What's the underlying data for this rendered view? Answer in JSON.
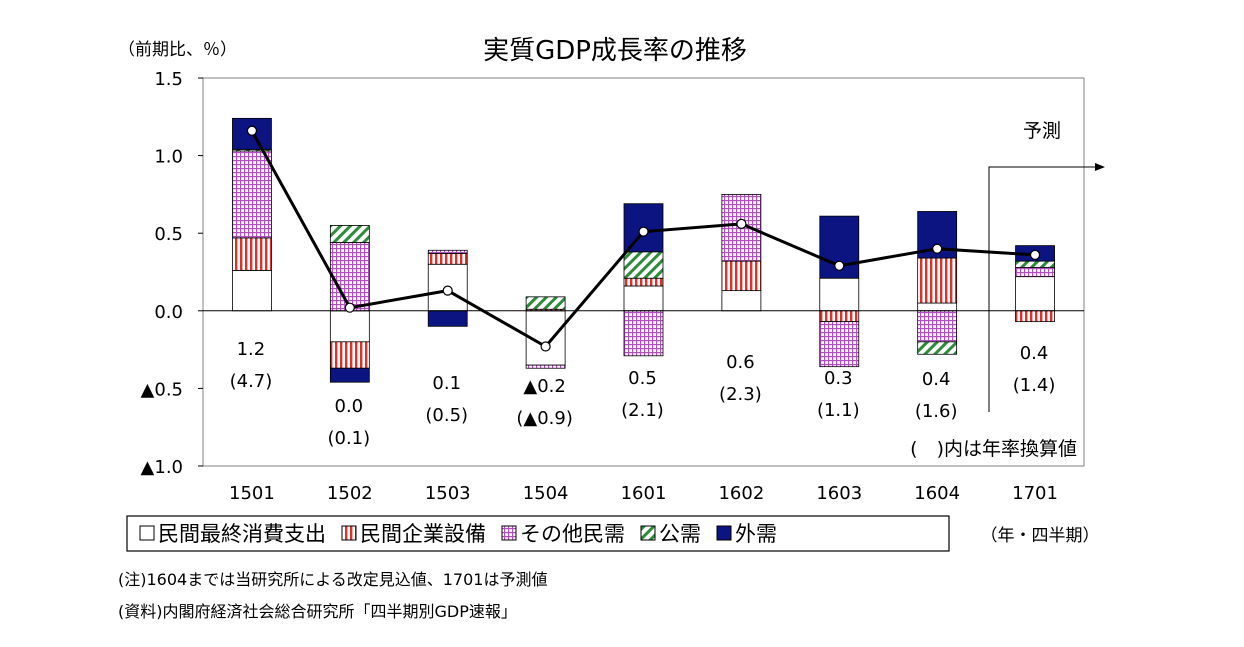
{
  "colors": {
    "private_consumption": "#ffffff",
    "business_investment": "#e0302a",
    "other_private": "#b04fc0",
    "public": "#2e8b3a",
    "external": "#0b1480",
    "line": "#000000"
  },
  "chart_data": {
    "type": "bar",
    "stacked": true,
    "title": "実質GDP成長率の推移",
    "ylabel": "（前期比、％）",
    "xlabel": "（年・四半期）",
    "ylim": [
      -1.0,
      1.5
    ],
    "yticks": [
      {
        "value": 1.5,
        "label": "1.5"
      },
      {
        "value": 1.0,
        "label": "1.0"
      },
      {
        "value": 0.5,
        "label": "0.5"
      },
      {
        "value": 0.0,
        "label": "0.0"
      },
      {
        "value": -0.5,
        "label": "▲0.5"
      },
      {
        "value": -1.0,
        "label": "▲1.0"
      }
    ],
    "grid": false,
    "categories": [
      "1501",
      "1502",
      "1503",
      "1504",
      "1601",
      "1602",
      "1603",
      "1604",
      "1701"
    ],
    "series": [
      {
        "name": "民間最終消費支出",
        "key": "private_consumption",
        "pattern": "solid",
        "values": [
          0.26,
          -0.2,
          0.3,
          -0.35,
          0.16,
          0.13,
          0.21,
          0.05,
          0.22
        ]
      },
      {
        "name": "民間企業設備",
        "key": "business_investment",
        "pattern": "vertical",
        "values": [
          0.21,
          -0.17,
          0.07,
          0.01,
          0.05,
          0.19,
          -0.07,
          0.29,
          -0.07
        ]
      },
      {
        "name": "その他民需",
        "key": "other_private",
        "pattern": "grid",
        "values": [
          0.56,
          0.44,
          0.02,
          -0.02,
          -0.29,
          0.43,
          -0.29,
          -0.2,
          0.06
        ]
      },
      {
        "name": "公需",
        "key": "public",
        "pattern": "diagonal",
        "values": [
          0.01,
          0.11,
          0.0,
          0.08,
          0.17,
          0.0,
          0.0,
          -0.08,
          0.04
        ]
      },
      {
        "name": "外需",
        "key": "external",
        "pattern": "solid",
        "values": [
          0.2,
          -0.09,
          -0.1,
          0.0,
          0.31,
          0.0,
          0.4,
          0.3,
          0.1
        ]
      }
    ],
    "total_line": {
      "values": [
        1.16,
        0.02,
        0.13,
        -0.23,
        0.51,
        0.56,
        0.29,
        0.4,
        0.36
      ]
    },
    "data_labels": [
      {
        "main": "1.2",
        "sub": "(4.7)"
      },
      {
        "main": "0.0",
        "sub": "(0.1)"
      },
      {
        "main": "0.1",
        "sub": "(0.5)"
      },
      {
        "main": "▲0.2",
        "sub": "(▲0.9)"
      },
      {
        "main": "0.5",
        "sub": "(2.1)"
      },
      {
        "main": "0.6",
        "sub": "(2.3)"
      },
      {
        "main": "0.3",
        "sub": "(1.1)"
      },
      {
        "main": "0.4",
        "sub": "(1.6)"
      },
      {
        "main": "0.4",
        "sub": "(1.4)"
      }
    ],
    "annotations": {
      "forecast": "予測",
      "annual_note": "(　)内は年率換算値"
    },
    "legend_placement": "bottom"
  },
  "notes": {
    "note": "(注)1604までは当研究所による改定見込値、1701は予測値",
    "source": "(資料)内閣府経済社会総合研究所「四半期別GDP速報」"
  }
}
